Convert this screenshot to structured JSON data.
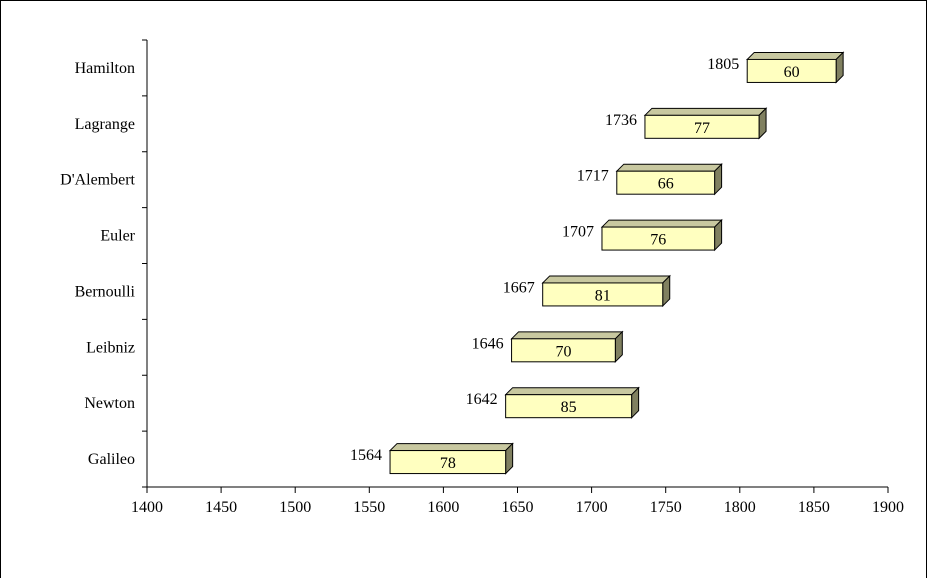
{
  "chart_data": {
    "type": "bar",
    "orientation": "horizontal",
    "style": "floating-3d",
    "categories": [
      "Hamilton",
      "Lagrange",
      "D'Alembert",
      "Euler",
      "Bernoulli",
      "Leibniz",
      "Newton",
      "Galileo"
    ],
    "start": [
      1805,
      1736,
      1717,
      1707,
      1667,
      1646,
      1642,
      1564
    ],
    "duration": [
      60,
      77,
      66,
      76,
      81,
      70,
      85,
      78
    ],
    "start_labels": [
      "1805",
      "1736",
      "1717",
      "1707",
      "1667",
      "1646",
      "1642",
      "1564"
    ],
    "duration_labels": [
      "60",
      "77",
      "66",
      "76",
      "81",
      "70",
      "85",
      "78"
    ],
    "xticks": [
      "1400",
      "1450",
      "1500",
      "1550",
      "1600",
      "1650",
      "1700",
      "1750",
      "1800",
      "1850",
      "1900"
    ],
    "xlim": [
      1400,
      1900
    ],
    "bar_color": "#ffffc0",
    "bar_side_color": "#808060",
    "bar_top_color": "#c8c8a0",
    "grid": false,
    "legend": "none"
  }
}
